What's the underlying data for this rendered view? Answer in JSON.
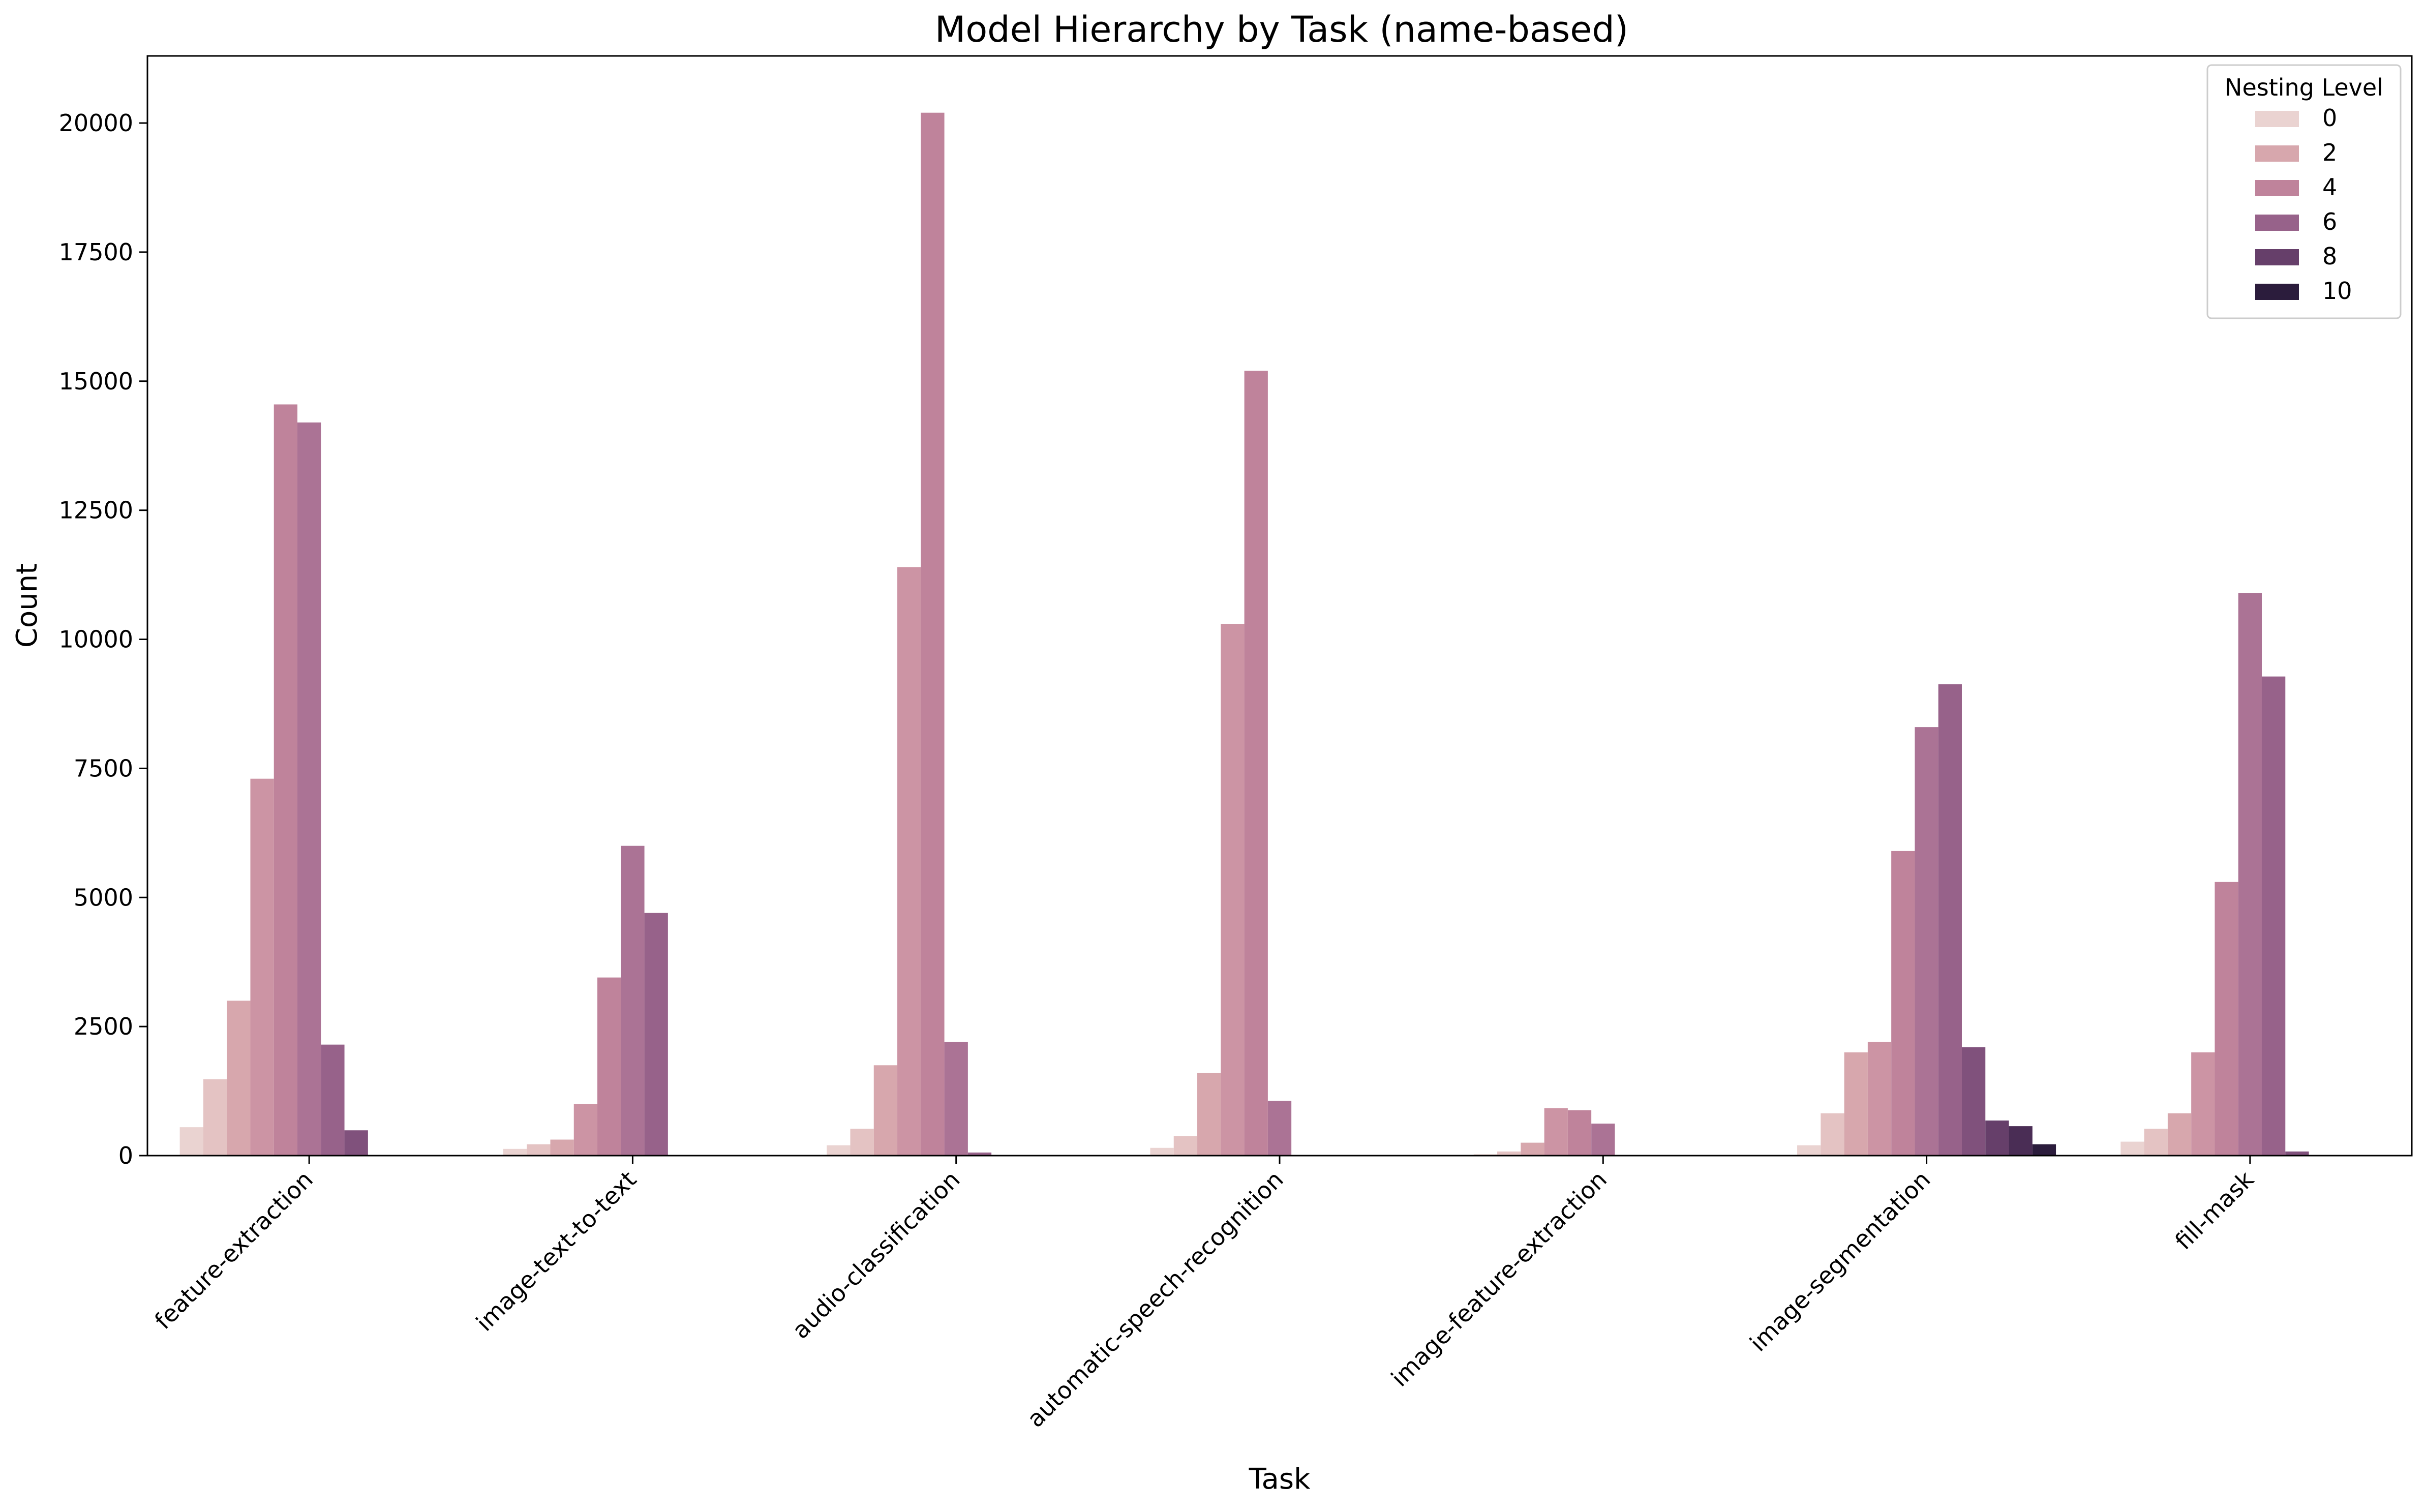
{
  "chart_data": {
    "type": "bar",
    "title": "Model Hierarchy by Task (name-based)",
    "xlabel": "Task",
    "ylabel": "Count",
    "ylim": [
      0,
      21300
    ],
    "yticks": [
      0,
      2500,
      5000,
      7500,
      10000,
      12500,
      15000,
      17500,
      20000
    ],
    "grid": false,
    "legend": {
      "title": "Nesting Level",
      "placement": "top-right",
      "entries": [
        "0",
        "2",
        "4",
        "6",
        "8",
        "10"
      ],
      "entry_colors": [
        "#ead3d1",
        "#d7a7ad",
        "#bf839b",
        "#97628a",
        "#663f6a",
        "#2b1c3c"
      ]
    },
    "categories": [
      "feature-extraction",
      "image-text-to-text",
      "audio-classification",
      "automatic-speech-recognition",
      "image-feature-extraction",
      "image-segmentation",
      "fill-mask"
    ],
    "levels": [
      0,
      1,
      2,
      3,
      4,
      5,
      6,
      7,
      8,
      9,
      10
    ],
    "level_colors": [
      "#ead3d1",
      "#e4c3c3",
      "#d7a7ad",
      "#cc94a4",
      "#bf839b",
      "#ab7395",
      "#97628a",
      "#80517c",
      "#663f6a",
      "#4a2d55",
      "#2b1c3c"
    ],
    "series": [
      {
        "level": 0,
        "values": [
          550,
          130,
          200,
          150,
          25,
          200,
          270
        ]
      },
      {
        "level": 1,
        "values": [
          1480,
          220,
          520,
          380,
          80,
          820,
          520
        ]
      },
      {
        "level": 2,
        "values": [
          3000,
          310,
          1750,
          1600,
          250,
          2000,
          820
        ]
      },
      {
        "level": 3,
        "values": [
          7300,
          1000,
          11400,
          10300,
          920,
          2200,
          2000
        ]
      },
      {
        "level": 4,
        "values": [
          14550,
          3450,
          20200,
          15200,
          880,
          5900,
          5300
        ]
      },
      {
        "level": 5,
        "values": [
          14200,
          6000,
          2200,
          1060,
          620,
          8300,
          10900
        ]
      },
      {
        "level": 6,
        "values": [
          2150,
          4700,
          60,
          0,
          0,
          9130,
          9280
        ]
      },
      {
        "level": 7,
        "values": [
          490,
          0,
          0,
          0,
          0,
          2100,
          80
        ]
      },
      {
        "level": 8,
        "values": [
          0,
          0,
          0,
          0,
          0,
          680,
          0
        ]
      },
      {
        "level": 9,
        "values": [
          0,
          0,
          0,
          0,
          0,
          570,
          0
        ]
      },
      {
        "level": 10,
        "values": [
          0,
          0,
          0,
          0,
          0,
          220,
          0
        ]
      }
    ]
  }
}
